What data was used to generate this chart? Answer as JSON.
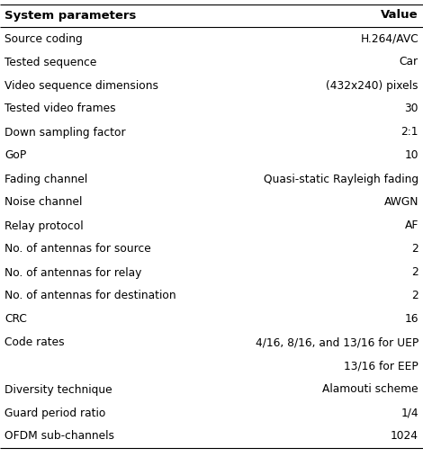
{
  "col_header_left": "System parameters",
  "col_header_right": "Value",
  "rows": [
    [
      "Source coding",
      "H.264/AVC"
    ],
    [
      "Tested sequence",
      "Car"
    ],
    [
      "Video sequence dimensions",
      "(432x240) pixels"
    ],
    [
      "Tested video frames",
      "30"
    ],
    [
      "Down sampling factor",
      "2:1"
    ],
    [
      "GoP",
      "10"
    ],
    [
      "Fading channel",
      "Quasi-static Rayleigh fading"
    ],
    [
      "Noise channel",
      "AWGN"
    ],
    [
      "Relay protocol",
      "AF"
    ],
    [
      "No. of antennas for source",
      "2"
    ],
    [
      "No. of antennas for relay",
      "2"
    ],
    [
      "No. of antennas for destination",
      "2"
    ],
    [
      "CRC",
      "16"
    ],
    [
      "Code rates",
      "4/16, 8/16, and 13/16 for UEP"
    ],
    [
      "",
      "13/16 for EEP"
    ],
    [
      "Diversity technique",
      "Alamouti scheme"
    ],
    [
      "Guard period ratio",
      "1/4"
    ],
    [
      "OFDM sub-channels",
      "1024"
    ]
  ],
  "header_fontsize": 9.5,
  "body_fontsize": 8.8,
  "background_color": "#ffffff",
  "header_color": "#000000",
  "text_color": "#000000",
  "line_color": "#000000",
  "figsize": [
    4.7,
    5.28
  ],
  "dpi": 100
}
